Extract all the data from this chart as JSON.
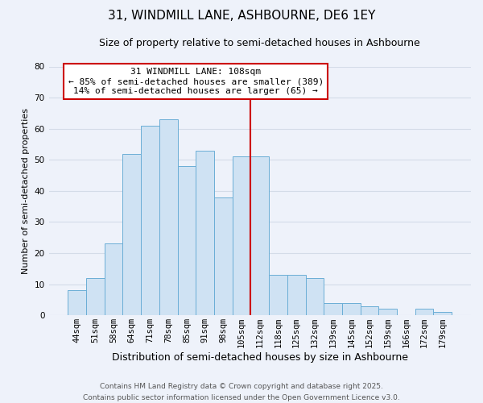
{
  "title": "31, WINDMILL LANE, ASHBOURNE, DE6 1EY",
  "subtitle": "Size of property relative to semi-detached houses in Ashbourne",
  "xlabel": "Distribution of semi-detached houses by size in Ashbourne",
  "ylabel": "Number of semi-detached properties",
  "bar_labels": [
    "44sqm",
    "51sqm",
    "58sqm",
    "64sqm",
    "71sqm",
    "78sqm",
    "85sqm",
    "91sqm",
    "98sqm",
    "105sqm",
    "112sqm",
    "118sqm",
    "125sqm",
    "132sqm",
    "139sqm",
    "145sqm",
    "152sqm",
    "159sqm",
    "166sqm",
    "172sqm",
    "179sqm"
  ],
  "bar_values": [
    8,
    12,
    23,
    52,
    61,
    63,
    48,
    53,
    38,
    51,
    51,
    13,
    13,
    12,
    4,
    4,
    3,
    2,
    0,
    2,
    1
  ],
  "bar_color": "#cfe2f3",
  "bar_edge_color": "#6baed6",
  "highlight_line_x_label": "112sqm",
  "highlight_line_color": "#cc0000",
  "annotation_text": "31 WINDMILL LANE: 108sqm\n← 85% of semi-detached houses are smaller (389)\n14% of semi-detached houses are larger (65) →",
  "annotation_box_color": "white",
  "annotation_box_edge_color": "#cc0000",
  "ylim": [
    0,
    80
  ],
  "yticks": [
    0,
    10,
    20,
    30,
    40,
    50,
    60,
    70,
    80
  ],
  "grid_color": "#d4dce8",
  "background_color": "#eef2fa",
  "footer_line1": "Contains HM Land Registry data © Crown copyright and database right 2025.",
  "footer_line2": "Contains public sector information licensed under the Open Government Licence v3.0.",
  "title_fontsize": 11,
  "subtitle_fontsize": 9,
  "xlabel_fontsize": 9,
  "ylabel_fontsize": 8,
  "tick_fontsize": 7.5,
  "annotation_fontsize": 8,
  "footer_fontsize": 6.5
}
